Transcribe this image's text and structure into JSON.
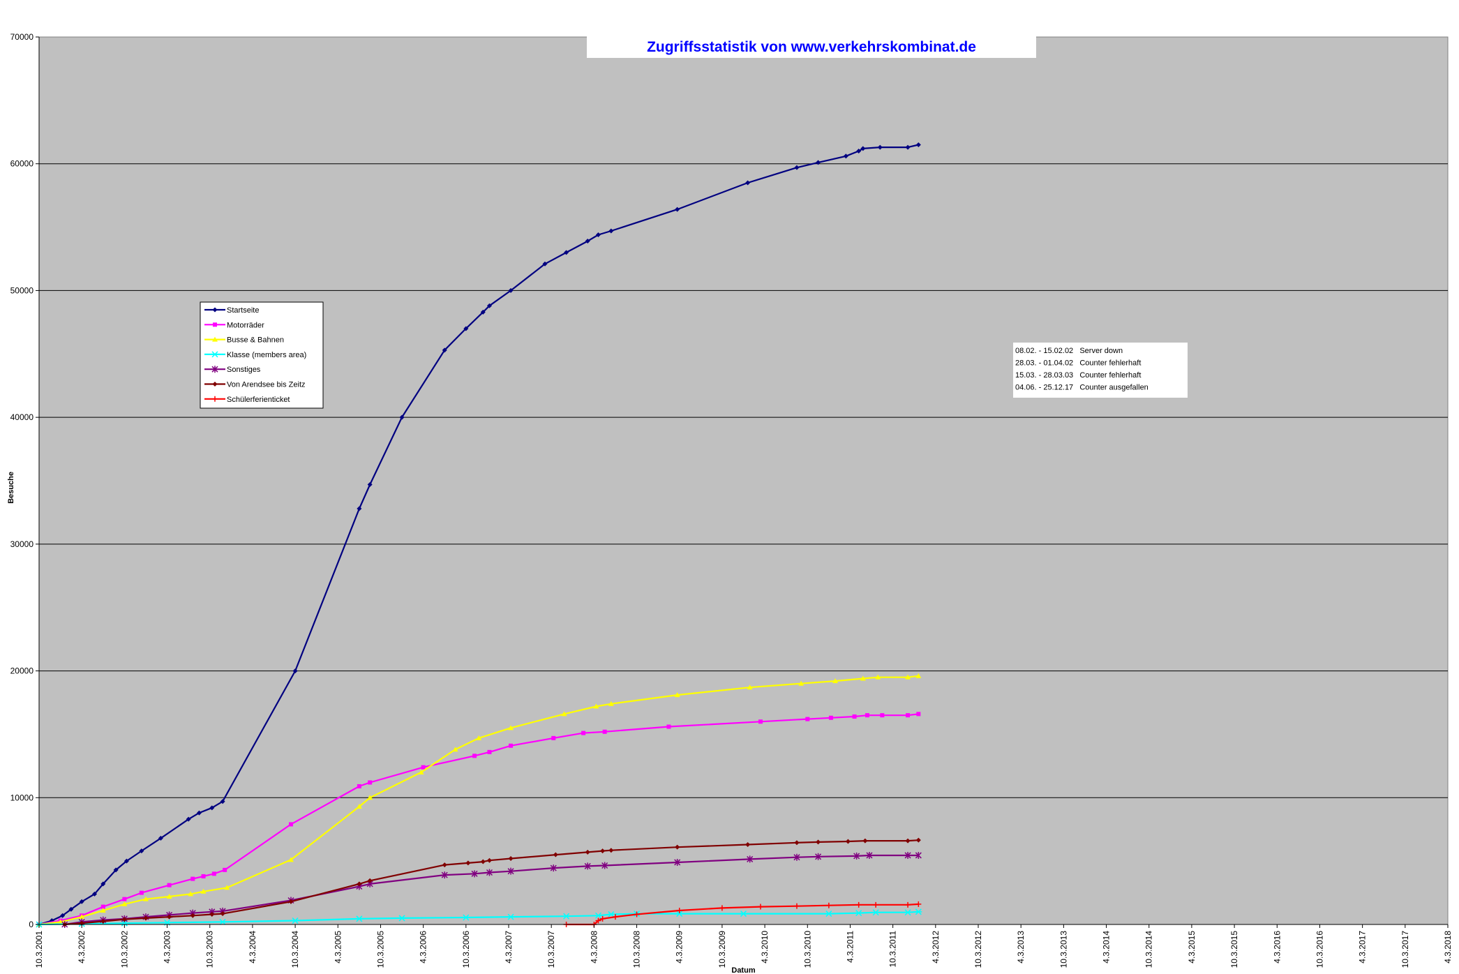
{
  "chart_data": {
    "type": "line",
    "title": "Zugriffsstatistik von www.verkehrskombinat.de",
    "xlabel": "Datum",
    "ylabel": "Besuche",
    "ylim": [
      0,
      70000
    ],
    "yticks": [
      0,
      10000,
      20000,
      30000,
      40000,
      50000,
      60000,
      70000
    ],
    "xlim": [
      "2001-03-10",
      "2018-03-04"
    ],
    "xticks": [
      "10.3.2001",
      "4.3.2002",
      "10.3.2002",
      "4.3.2003",
      "10.3.2003",
      "4.3.2004",
      "10.3.2004",
      "4.3.2005",
      "10.3.2005",
      "4.3.2006",
      "10.3.2006",
      "4.3.2007",
      "10.3.2007",
      "4.3.2008",
      "10.3.2008",
      "4.3.2009",
      "10.3.2009",
      "4.3.2010",
      "10.3.2010",
      "4.3.2011",
      "10.3.2011",
      "4.3.2012",
      "10.3.2012",
      "4.3.2013",
      "10.3.2013",
      "4.3.2014",
      "10.3.2014",
      "4.3.2015",
      "10.3.2015",
      "4.3.2016",
      "10.3.2016",
      "4.3.2017",
      "10.3.2017",
      "4.3.2018"
    ],
    "grid": "horizontal",
    "legend_position": "left",
    "notes": [
      "08.02. - 15.02.02   Server down",
      "28.03. - 01.04.02   Counter fehlerhaft",
      "15.03. - 28.03.03   Counter fehlerhaft",
      "04.06. - 25.12.17   Counter ausgefallen"
    ],
    "series": [
      {
        "name": "Startseite",
        "color": "#000080",
        "marker": "diamond",
        "points": [
          [
            0.0,
            0
          ],
          [
            0.3,
            300
          ],
          [
            0.55,
            700
          ],
          [
            0.75,
            1200
          ],
          [
            1.0,
            1800
          ],
          [
            1.3,
            2400
          ],
          [
            1.5,
            3200
          ],
          [
            1.8,
            4300
          ],
          [
            2.05,
            5000
          ],
          [
            2.4,
            5800
          ],
          [
            2.85,
            6800
          ],
          [
            3.5,
            8300
          ],
          [
            3.75,
            8800
          ],
          [
            4.05,
            9200
          ],
          [
            4.3,
            9700
          ],
          [
            6.0,
            20000
          ],
          [
            7.5,
            32800
          ],
          [
            7.75,
            34700
          ],
          [
            8.5,
            40000
          ],
          [
            9.5,
            45300
          ],
          [
            10.0,
            47000
          ],
          [
            10.4,
            48300
          ],
          [
            10.55,
            48800
          ],
          [
            11.05,
            50000
          ],
          [
            11.85,
            52100
          ],
          [
            12.35,
            53000
          ],
          [
            12.85,
            53900
          ],
          [
            13.1,
            54400
          ],
          [
            13.4,
            54700
          ],
          [
            14.95,
            56400
          ],
          [
            16.6,
            58500
          ],
          [
            17.75,
            59700
          ],
          [
            18.25,
            60100
          ],
          [
            18.9,
            60600
          ],
          [
            19.2,
            61000
          ],
          [
            19.3,
            61200
          ],
          [
            19.7,
            61300
          ],
          [
            20.35,
            61300
          ],
          [
            20.6,
            61500
          ]
        ]
      },
      {
        "name": "Motorräder",
        "color": "#ff00ff",
        "marker": "square",
        "points": [
          [
            0.0,
            0
          ],
          [
            0.5,
            300
          ],
          [
            1.0,
            700
          ],
          [
            1.5,
            1400
          ],
          [
            2.0,
            2000
          ],
          [
            2.4,
            2500
          ],
          [
            3.05,
            3100
          ],
          [
            3.6,
            3600
          ],
          [
            3.85,
            3800
          ],
          [
            4.1,
            4000
          ],
          [
            4.35,
            4300
          ],
          [
            5.9,
            7900
          ],
          [
            7.5,
            10900
          ],
          [
            7.75,
            11200
          ],
          [
            9.0,
            12400
          ],
          [
            10.2,
            13300
          ],
          [
            10.55,
            13600
          ],
          [
            11.05,
            14100
          ],
          [
            12.05,
            14700
          ],
          [
            12.75,
            15100
          ],
          [
            13.25,
            15200
          ],
          [
            14.75,
            15600
          ],
          [
            16.9,
            16000
          ],
          [
            18.0,
            16200
          ],
          [
            18.55,
            16300
          ],
          [
            19.1,
            16400
          ],
          [
            19.4,
            16500
          ],
          [
            19.75,
            16500
          ],
          [
            20.35,
            16500
          ],
          [
            20.6,
            16600
          ]
        ]
      },
      {
        "name": "Busse & Bahnen",
        "color": "#ffff00",
        "marker": "triangle",
        "points": [
          [
            0.0,
            0
          ],
          [
            0.5,
            200
          ],
          [
            1.0,
            600
          ],
          [
            1.5,
            1100
          ],
          [
            2.0,
            1600
          ],
          [
            2.5,
            2000
          ],
          [
            3.05,
            2200
          ],
          [
            3.55,
            2400
          ],
          [
            3.85,
            2600
          ],
          [
            4.4,
            2900
          ],
          [
            5.9,
            5100
          ],
          [
            7.5,
            9300
          ],
          [
            7.75,
            10000
          ],
          [
            8.95,
            12000
          ],
          [
            9.75,
            13800
          ],
          [
            10.3,
            14700
          ],
          [
            11.05,
            15500
          ],
          [
            12.3,
            16600
          ],
          [
            13.05,
            17200
          ],
          [
            13.4,
            17400
          ],
          [
            14.95,
            18100
          ],
          [
            16.65,
            18700
          ],
          [
            17.85,
            19000
          ],
          [
            18.65,
            19200
          ],
          [
            19.3,
            19400
          ],
          [
            19.65,
            19500
          ],
          [
            20.35,
            19500
          ],
          [
            20.6,
            19600
          ]
        ]
      },
      {
        "name": "Klasse (members area)",
        "color": "#00ffff",
        "marker": "star",
        "points": [
          [
            0.0,
            0
          ],
          [
            1.0,
            50
          ],
          [
            2.0,
            100
          ],
          [
            3.0,
            150
          ],
          [
            4.3,
            200
          ],
          [
            6.0,
            300
          ],
          [
            7.5,
            450
          ],
          [
            8.5,
            500
          ],
          [
            10.0,
            550
          ],
          [
            11.05,
            600
          ],
          [
            12.35,
            650
          ],
          [
            13.1,
            700
          ],
          [
            13.4,
            800
          ],
          [
            14.0,
            850
          ],
          [
            15.0,
            850
          ],
          [
            16.5,
            850
          ],
          [
            18.5,
            850
          ],
          [
            19.2,
            900
          ],
          [
            19.6,
            950
          ],
          [
            20.35,
            950
          ],
          [
            20.6,
            1000
          ]
        ]
      },
      {
        "name": "Sonstiges",
        "color": "#800080",
        "marker": "x",
        "points": [
          [
            0.6,
            0
          ],
          [
            1.0,
            200
          ],
          [
            1.5,
            350
          ],
          [
            2.0,
            450
          ],
          [
            2.5,
            600
          ],
          [
            3.05,
            750
          ],
          [
            3.6,
            900
          ],
          [
            4.05,
            1000
          ],
          [
            4.3,
            1050
          ],
          [
            5.9,
            1900
          ],
          [
            7.5,
            3000
          ],
          [
            7.75,
            3200
          ],
          [
            9.5,
            3900
          ],
          [
            10.2,
            4000
          ],
          [
            10.55,
            4100
          ],
          [
            11.05,
            4200
          ],
          [
            12.05,
            4450
          ],
          [
            12.85,
            4600
          ],
          [
            13.25,
            4650
          ],
          [
            14.95,
            4900
          ],
          [
            16.65,
            5150
          ],
          [
            17.75,
            5300
          ],
          [
            18.25,
            5350
          ],
          [
            19.15,
            5400
          ],
          [
            19.45,
            5450
          ],
          [
            20.35,
            5450
          ],
          [
            20.6,
            5450
          ]
        ]
      },
      {
        "name": "Von Arendsee bis Zeitz",
        "color": "#800000",
        "marker": "diamond",
        "points": [
          [
            0.6,
            0
          ],
          [
            1.0,
            100
          ],
          [
            1.5,
            250
          ],
          [
            2.0,
            400
          ],
          [
            2.5,
            500
          ],
          [
            3.05,
            600
          ],
          [
            3.6,
            700
          ],
          [
            4.05,
            800
          ],
          [
            4.3,
            850
          ],
          [
            5.9,
            1800
          ],
          [
            7.5,
            3200
          ],
          [
            7.75,
            3450
          ],
          [
            9.5,
            4700
          ],
          [
            10.05,
            4850
          ],
          [
            10.4,
            4950
          ],
          [
            10.55,
            5050
          ],
          [
            11.05,
            5200
          ],
          [
            12.1,
            5500
          ],
          [
            12.85,
            5700
          ],
          [
            13.2,
            5800
          ],
          [
            13.4,
            5850
          ],
          [
            14.95,
            6100
          ],
          [
            16.6,
            6300
          ],
          [
            17.75,
            6450
          ],
          [
            18.25,
            6500
          ],
          [
            18.95,
            6550
          ],
          [
            19.35,
            6600
          ],
          [
            20.35,
            6600
          ],
          [
            20.6,
            6650
          ]
        ]
      },
      {
        "name": "Schülerferienticket",
        "color": "#ff0000",
        "marker": "plus",
        "points": [
          [
            12.35,
            0
          ],
          [
            13.0,
            0
          ],
          [
            13.1,
            300
          ],
          [
            13.2,
            450
          ],
          [
            13.5,
            600
          ],
          [
            14.0,
            800
          ],
          [
            15.0,
            1100
          ],
          [
            16.0,
            1300
          ],
          [
            16.9,
            1400
          ],
          [
            17.75,
            1450
          ],
          [
            18.5,
            1500
          ],
          [
            19.2,
            1550
          ],
          [
            19.6,
            1550
          ],
          [
            20.35,
            1550
          ],
          [
            20.6,
            1600
          ]
        ]
      }
    ]
  }
}
